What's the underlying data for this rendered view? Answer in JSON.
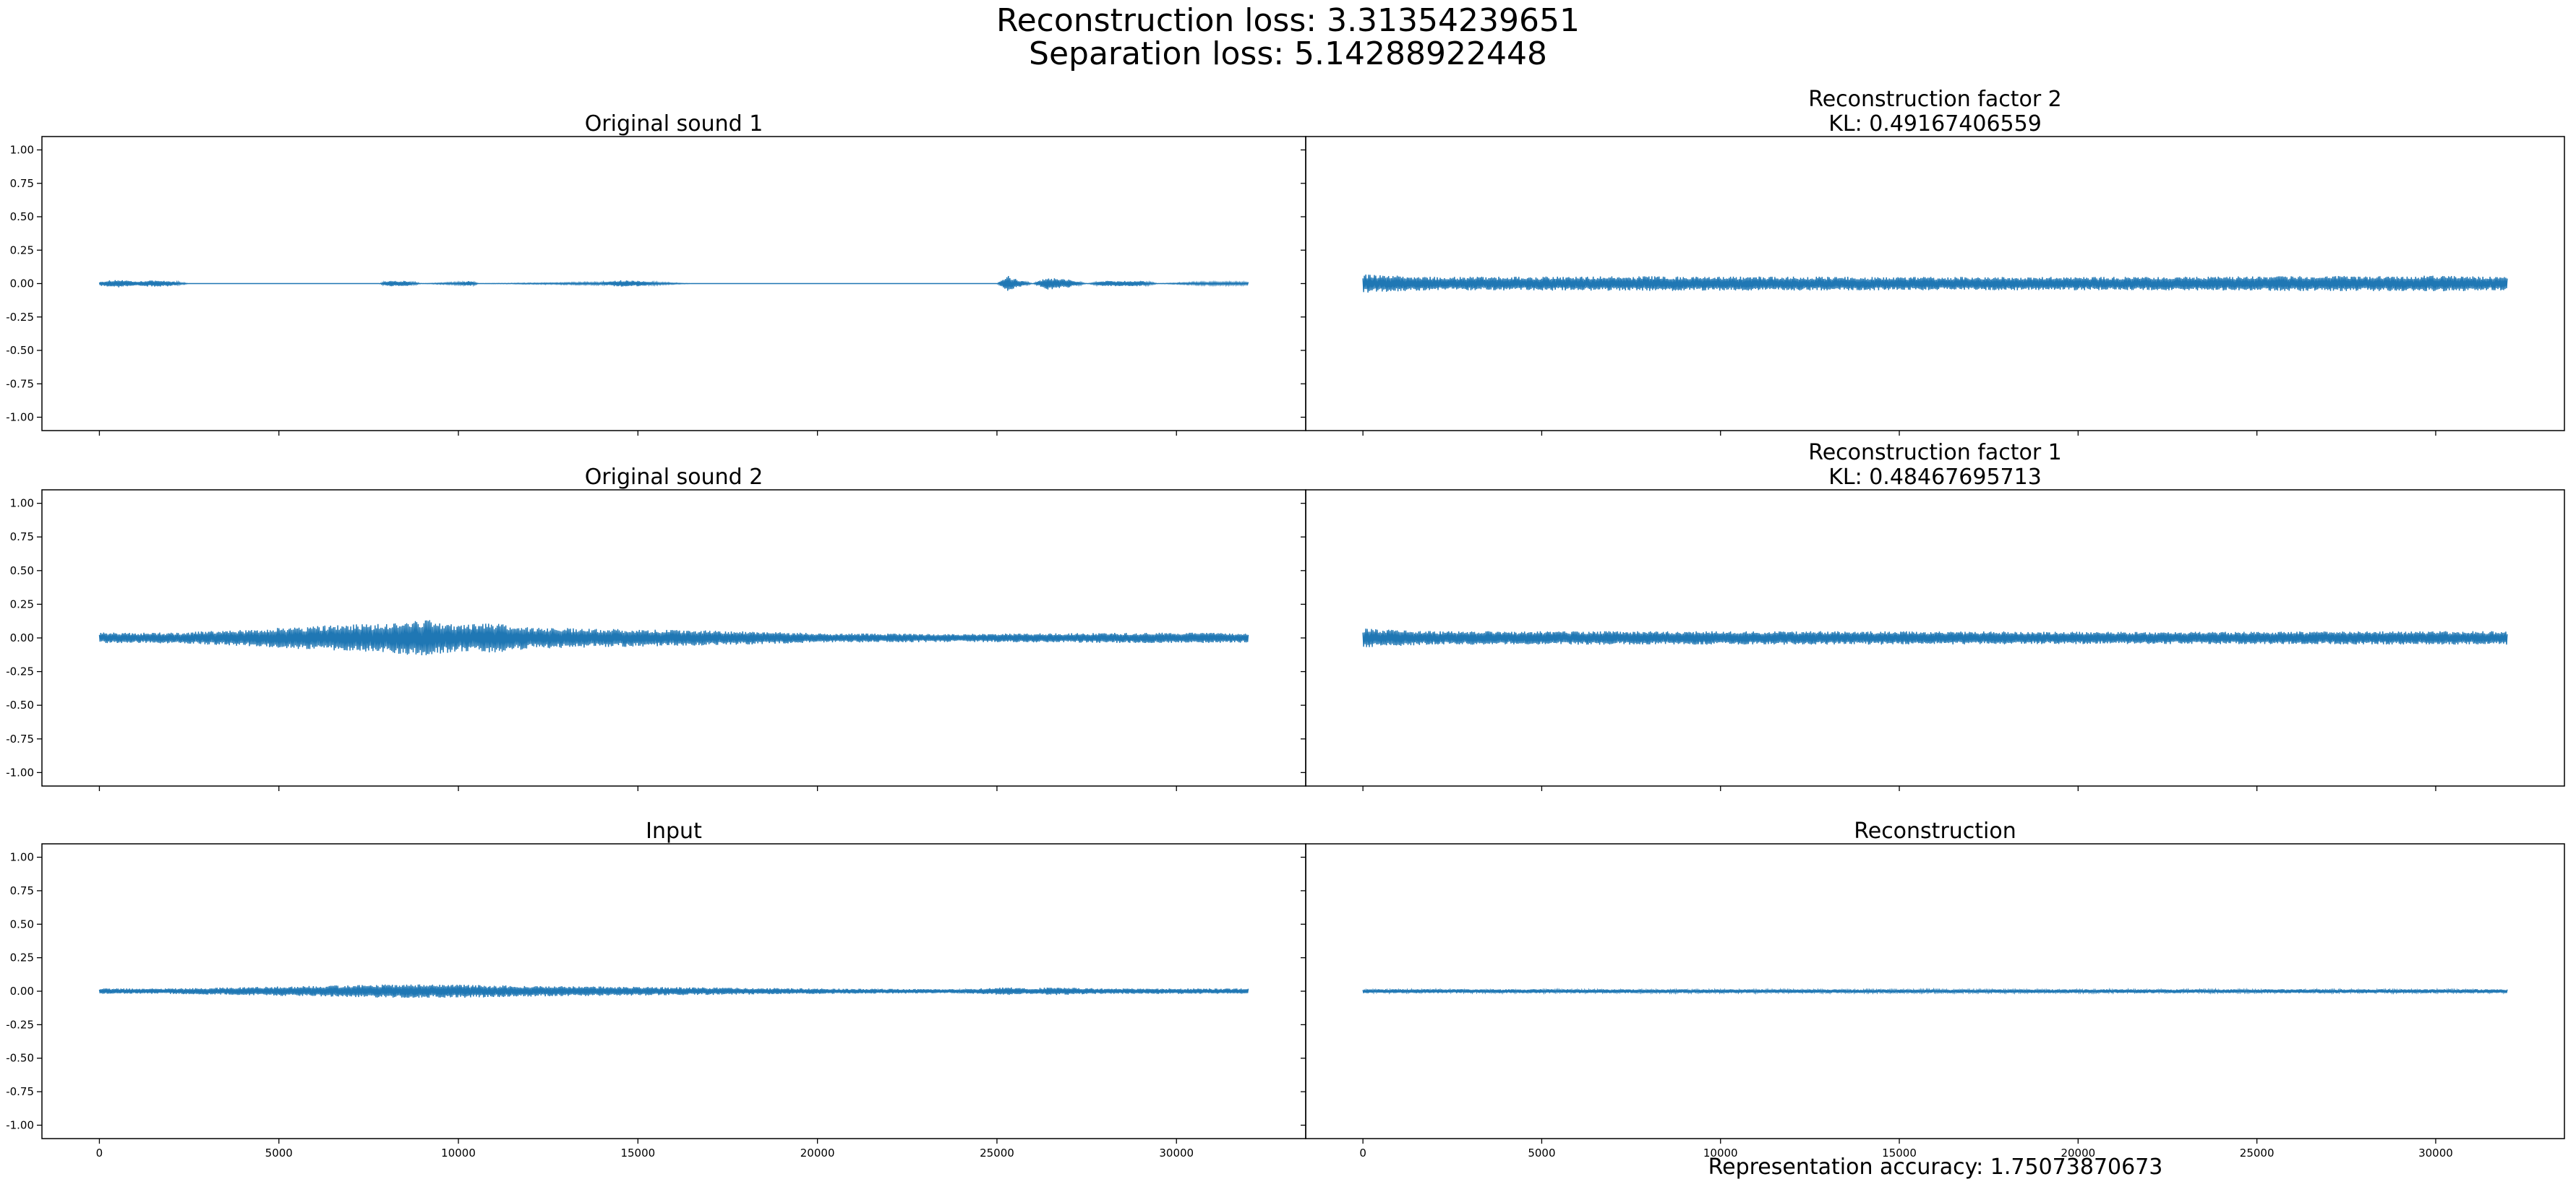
{
  "figure": {
    "suptitle_line1": "Reconstruction loss: 3.31354239651",
    "suptitle_line2": "Separation loss: 5.14288922448",
    "footer": "Representation accuracy: 1.75073870673",
    "line_color": "#1f77b4"
  },
  "chart_data": [
    {
      "type": "line",
      "title": "Original sound 1",
      "xlabel": "",
      "ylabel": "",
      "xlim": [
        -1600,
        33600
      ],
      "ylim": [
        -1.1,
        1.1
      ],
      "x_ticks": [
        0,
        5000,
        10000,
        15000,
        20000,
        25000,
        30000
      ],
      "y_ticks": [
        -1.0,
        -0.75,
        -0.5,
        -0.25,
        0.0,
        0.25,
        0.5,
        0.75,
        1.0
      ],
      "x_range": [
        0,
        32000
      ],
      "envelope": [
        [
          0,
          0.015
        ],
        [
          500,
          0.03
        ],
        [
          1000,
          0.015
        ],
        [
          1500,
          0.025
        ],
        [
          2000,
          0.02
        ],
        [
          2500,
          0.0
        ],
        [
          7800,
          0.0
        ],
        [
          8000,
          0.02
        ],
        [
          8500,
          0.02
        ],
        [
          9000,
          0.0
        ],
        [
          10000,
          0.01
        ],
        [
          10300,
          0.02
        ],
        [
          10600,
          0.0
        ],
        [
          14000,
          0.01
        ],
        [
          14500,
          0.025
        ],
        [
          15000,
          0.02
        ],
        [
          15500,
          0.01
        ],
        [
          16500,
          0.0
        ],
        [
          25000,
          0.0
        ],
        [
          25300,
          0.06
        ],
        [
          25600,
          0.03
        ],
        [
          26000,
          0.0
        ],
        [
          26400,
          0.045
        ],
        [
          27000,
          0.03
        ],
        [
          27500,
          0.0
        ],
        [
          28000,
          0.02
        ],
        [
          29000,
          0.02
        ],
        [
          29500,
          0.0
        ],
        [
          30500,
          0.01
        ],
        [
          32000,
          0.012
        ]
      ]
    },
    {
      "type": "line",
      "title": "Reconstruction factor 2\nKL: 0.49167406559",
      "xlabel": "",
      "ylabel": "",
      "xlim": [
        -1600,
        33600
      ],
      "ylim": [
        -1.1,
        1.1
      ],
      "x_ticks": [
        0,
        5000,
        10000,
        15000,
        20000,
        25000,
        30000
      ],
      "y_ticks": [
        -1.0,
        -0.75,
        -0.5,
        -0.25,
        0.0,
        0.25,
        0.5,
        0.75,
        1.0
      ],
      "x_range": [
        0,
        32000
      ],
      "envelope": [
        [
          0,
          0.07
        ],
        [
          2000,
          0.05
        ],
        [
          8000,
          0.055
        ],
        [
          15000,
          0.05
        ],
        [
          22000,
          0.05
        ],
        [
          30000,
          0.06
        ],
        [
          32000,
          0.05
        ]
      ]
    },
    {
      "type": "line",
      "title": "Original sound 2",
      "xlabel": "",
      "ylabel": "",
      "xlim": [
        -1600,
        33600
      ],
      "ylim": [
        -1.1,
        1.1
      ],
      "x_ticks": [
        0,
        5000,
        10000,
        15000,
        20000,
        25000,
        30000
      ],
      "y_ticks": [
        -1.0,
        -0.75,
        -0.5,
        -0.25,
        0.0,
        0.25,
        0.5,
        0.75,
        1.0
      ],
      "x_range": [
        0,
        32000
      ],
      "envelope": [
        [
          0,
          0.04
        ],
        [
          2000,
          0.04
        ],
        [
          4000,
          0.06
        ],
        [
          6000,
          0.09
        ],
        [
          8000,
          0.11
        ],
        [
          9000,
          0.14
        ],
        [
          10000,
          0.1
        ],
        [
          11000,
          0.11
        ],
        [
          12000,
          0.08
        ],
        [
          14000,
          0.07
        ],
        [
          16000,
          0.06
        ],
        [
          18000,
          0.05
        ],
        [
          20000,
          0.035
        ],
        [
          24000,
          0.03
        ],
        [
          27000,
          0.035
        ],
        [
          30000,
          0.04
        ],
        [
          32000,
          0.035
        ]
      ]
    },
    {
      "type": "line",
      "title": "Reconstruction factor 1\nKL: 0.48467695713",
      "xlabel": "",
      "ylabel": "",
      "xlim": [
        -1600,
        33600
      ],
      "ylim": [
        -1.1,
        1.1
      ],
      "x_ticks": [
        0,
        5000,
        10000,
        15000,
        20000,
        25000,
        30000
      ],
      "y_ticks": [
        -1.0,
        -0.75,
        -0.5,
        -0.25,
        0.0,
        0.25,
        0.5,
        0.75,
        1.0
      ],
      "x_range": [
        0,
        32000
      ],
      "envelope": [
        [
          0,
          0.07
        ],
        [
          2000,
          0.05
        ],
        [
          8000,
          0.05
        ],
        [
          15000,
          0.05
        ],
        [
          22000,
          0.045
        ],
        [
          30000,
          0.05
        ],
        [
          32000,
          0.05
        ]
      ]
    },
    {
      "type": "line",
      "title": "Input",
      "xlabel": "",
      "ylabel": "",
      "xlim": [
        -1600,
        33600
      ],
      "ylim": [
        -1.1,
        1.1
      ],
      "x_ticks": [
        0,
        5000,
        10000,
        15000,
        20000,
        25000,
        30000
      ],
      "y_ticks": [
        -1.0,
        -0.75,
        -0.5,
        -0.25,
        0.0,
        0.25,
        0.5,
        0.75,
        1.0
      ],
      "x_range": [
        0,
        32000
      ],
      "envelope": [
        [
          0,
          0.02
        ],
        [
          2000,
          0.02
        ],
        [
          4000,
          0.03
        ],
        [
          6000,
          0.04
        ],
        [
          8000,
          0.05
        ],
        [
          10000,
          0.05
        ],
        [
          12000,
          0.04
        ],
        [
          14000,
          0.035
        ],
        [
          16000,
          0.03
        ],
        [
          18000,
          0.025
        ],
        [
          20000,
          0.02
        ],
        [
          24000,
          0.015
        ],
        [
          25300,
          0.03
        ],
        [
          26000,
          0.02
        ],
        [
          26500,
          0.03
        ],
        [
          28000,
          0.02
        ],
        [
          30000,
          0.02
        ],
        [
          32000,
          0.02
        ]
      ]
    },
    {
      "type": "line",
      "title": "Reconstruction",
      "xlabel": "",
      "ylabel": "",
      "xlim": [
        -1600,
        33600
      ],
      "ylim": [
        -1.1,
        1.1
      ],
      "x_ticks": [
        0,
        5000,
        10000,
        15000,
        20000,
        25000,
        30000
      ],
      "y_ticks": [
        -1.0,
        -0.75,
        -0.5,
        -0.25,
        0.0,
        0.25,
        0.5,
        0.75,
        1.0
      ],
      "x_range": [
        0,
        32000
      ],
      "envelope": [
        [
          0,
          0.015
        ],
        [
          16000,
          0.014
        ],
        [
          32000,
          0.015
        ]
      ]
    }
  ]
}
